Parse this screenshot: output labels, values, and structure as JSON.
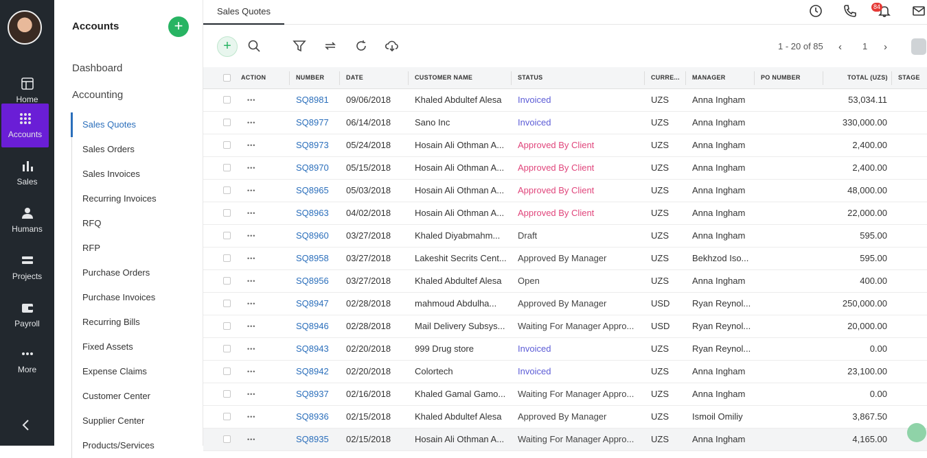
{
  "rail": {
    "items": [
      {
        "label": "Home",
        "icon": "home-icon"
      },
      {
        "label": "Accounts",
        "icon": "grid-icon",
        "active": true
      },
      {
        "label": "Sales",
        "icon": "bar-chart-icon"
      },
      {
        "label": "Humans",
        "icon": "person-icon"
      },
      {
        "label": "Projects",
        "icon": "projects-icon"
      },
      {
        "label": "Payroll",
        "icon": "wallet-icon"
      },
      {
        "label": "More",
        "icon": "more-dots-icon"
      }
    ]
  },
  "sidebar": {
    "title": "Accounts",
    "dashboard": "Dashboard",
    "accounting": "Accounting",
    "links": [
      "Sales Quotes",
      "Sales Orders",
      "Sales Invoices",
      "Recurring Invoices",
      "RFQ",
      "RFP",
      "Purchase Orders",
      "Purchase Invoices",
      "Recurring Bills",
      "Fixed Assets",
      "Expense Claims",
      "Customer Center",
      "Supplier Center",
      "Products/Services"
    ]
  },
  "tab": {
    "label": "Sales Quotes"
  },
  "notifications": {
    "count": "84"
  },
  "pager": {
    "range": "1 - 20 of 85",
    "page": "1"
  },
  "table": {
    "headers": [
      "ACTION",
      "NUMBER",
      "DATE",
      "CUSTOMER NAME",
      "STATUS",
      "CURRE...",
      "MANAGER",
      "PO NUMBER",
      "TOTAL (UZS)",
      "STAGE"
    ],
    "rows": [
      {
        "number": "SQ8981",
        "date": "09/06/2018",
        "customer": "Khaled Abdultef Alesa",
        "status": "Invoiced",
        "status_color": "#5b5bd6",
        "currency": "UZS",
        "manager": "Anna Ingham",
        "total": "53,034.11"
      },
      {
        "number": "SQ8977",
        "date": "06/14/2018",
        "customer": "Sano Inc",
        "status": "Invoiced",
        "status_color": "#5b5bd6",
        "currency": "UZS",
        "manager": "Anna Ingham",
        "total": "330,000.00"
      },
      {
        "number": "SQ8973",
        "date": "05/24/2018",
        "customer": "Hosain Ali Othman A...",
        "status": "Approved By Client",
        "status_color": "#e0457b",
        "currency": "UZS",
        "manager": "Anna Ingham",
        "total": "2,400.00"
      },
      {
        "number": "SQ8970",
        "date": "05/15/2018",
        "customer": "Hosain Ali Othman A...",
        "status": "Approved By Client",
        "status_color": "#e0457b",
        "currency": "UZS",
        "manager": "Anna Ingham",
        "total": "2,400.00"
      },
      {
        "number": "SQ8965",
        "date": "05/03/2018",
        "customer": "Hosain Ali Othman A...",
        "status": "Approved By Client",
        "status_color": "#e0457b",
        "currency": "UZS",
        "manager": "Anna Ingham",
        "total": "48,000.00"
      },
      {
        "number": "SQ8963",
        "date": "04/02/2018",
        "customer": "Hosain Ali Othman A...",
        "status": "Approved By Client",
        "status_color": "#e0457b",
        "currency": "UZS",
        "manager": "Anna Ingham",
        "total": "22,000.00"
      },
      {
        "number": "SQ8960",
        "date": "03/27/2018",
        "customer": "Khaled Diyabmahm...",
        "status": "Draft",
        "status_color": "#444444",
        "currency": "UZS",
        "manager": "Anna Ingham",
        "total": "595.00"
      },
      {
        "number": "SQ8958",
        "date": "03/27/2018",
        "customer": "Lakeshit Secrits Cent...",
        "status": "Approved By Manager",
        "status_color": "#444444",
        "currency": "UZS",
        "manager": "Bekhzod Iso...",
        "total": "595.00"
      },
      {
        "number": "SQ8956",
        "date": "03/27/2018",
        "customer": "Khaled Abdultef Alesa",
        "status": "Open",
        "status_color": "#444444",
        "currency": "UZS",
        "manager": "Anna Ingham",
        "total": "400.00"
      },
      {
        "number": "SQ8947",
        "date": "02/28/2018",
        "customer": "mahmoud Abdulha...",
        "status": "Approved By Manager",
        "status_color": "#444444",
        "currency": "USD",
        "manager": "Ryan Reynol...",
        "total": "250,000.00"
      },
      {
        "number": "SQ8946",
        "date": "02/28/2018",
        "customer": "Mail Delivery Subsys...",
        "status": "Waiting For Manager Appro...",
        "status_color": "#444444",
        "currency": "USD",
        "manager": "Ryan Reynol...",
        "total": "20,000.00"
      },
      {
        "number": "SQ8943",
        "date": "02/20/2018",
        "customer": "999 Drug store",
        "status": "Invoiced",
        "status_color": "#5b5bd6",
        "currency": "UZS",
        "manager": "Ryan Reynol...",
        "total": "0.00"
      },
      {
        "number": "SQ8942",
        "date": "02/20/2018",
        "customer": "Colortech",
        "status": "Invoiced",
        "status_color": "#5b5bd6",
        "currency": "UZS",
        "manager": "Anna Ingham",
        "total": "23,100.00"
      },
      {
        "number": "SQ8937",
        "date": "02/16/2018",
        "customer": "Khaled Gamal Gamo...",
        "status": "Waiting For Manager Appro...",
        "status_color": "#444444",
        "currency": "UZS",
        "manager": "Anna Ingham",
        "total": "0.00"
      },
      {
        "number": "SQ8936",
        "date": "02/15/2018",
        "customer": "Khaled Abdultef Alesa",
        "status": "Approved By Manager",
        "status_color": "#444444",
        "currency": "UZS",
        "manager": "Ismoil Omiliy",
        "total": "3,867.50"
      },
      {
        "number": "SQ8935",
        "date": "02/15/2018",
        "customer": "Hosain Ali Othman A...",
        "status": "Waiting For Manager Appro...",
        "status_color": "#444444",
        "currency": "UZS",
        "manager": "Anna Ingham",
        "total": "4,165.00"
      }
    ]
  }
}
